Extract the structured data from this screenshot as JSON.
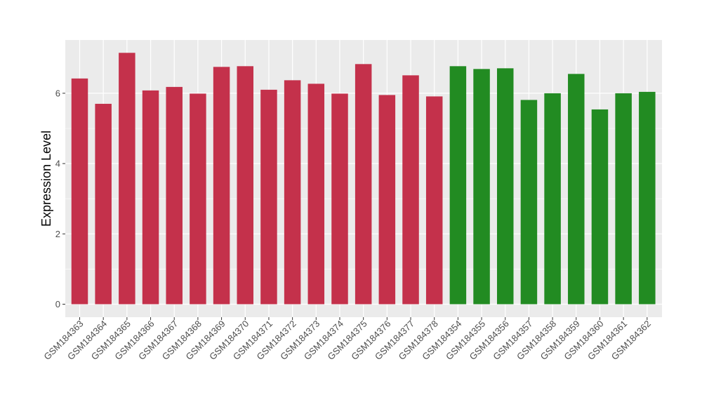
{
  "chart_data": {
    "type": "bar",
    "title": "",
    "xlabel": "",
    "ylabel": "Expression Level",
    "ylim": [
      -0.35,
      7.5
    ],
    "yticks": [
      0,
      2,
      4,
      6
    ],
    "grid": true,
    "legend": "none",
    "colors": {
      "group1": "#C4314B",
      "group2": "#228B22",
      "panel": "#EBEBEB",
      "gridline": "#ffffff"
    },
    "categories": [
      "GSM184363",
      "GSM184364",
      "GSM184365",
      "GSM184366",
      "GSM184367",
      "GSM184368",
      "GSM184369",
      "GSM184370",
      "GSM184371",
      "GSM184372",
      "GSM184373",
      "GSM184374",
      "GSM184375",
      "GSM184376",
      "GSM184377",
      "GSM184378",
      "GSM184354",
      "GSM184355",
      "GSM184356",
      "GSM184357",
      "GSM184358",
      "GSM184359",
      "GSM184360",
      "GSM184361",
      "GSM184362"
    ],
    "values": [
      6.42,
      5.7,
      7.15,
      6.08,
      6.18,
      5.99,
      6.75,
      6.77,
      6.1,
      6.37,
      6.27,
      5.99,
      6.83,
      5.95,
      6.51,
      5.91,
      6.77,
      6.69,
      6.71,
      5.81,
      6.0,
      6.55,
      5.54,
      6.0,
      6.04
    ],
    "groups": [
      1,
      1,
      1,
      1,
      1,
      1,
      1,
      1,
      1,
      1,
      1,
      1,
      1,
      1,
      1,
      1,
      2,
      2,
      2,
      2,
      2,
      2,
      2,
      2,
      2
    ]
  }
}
